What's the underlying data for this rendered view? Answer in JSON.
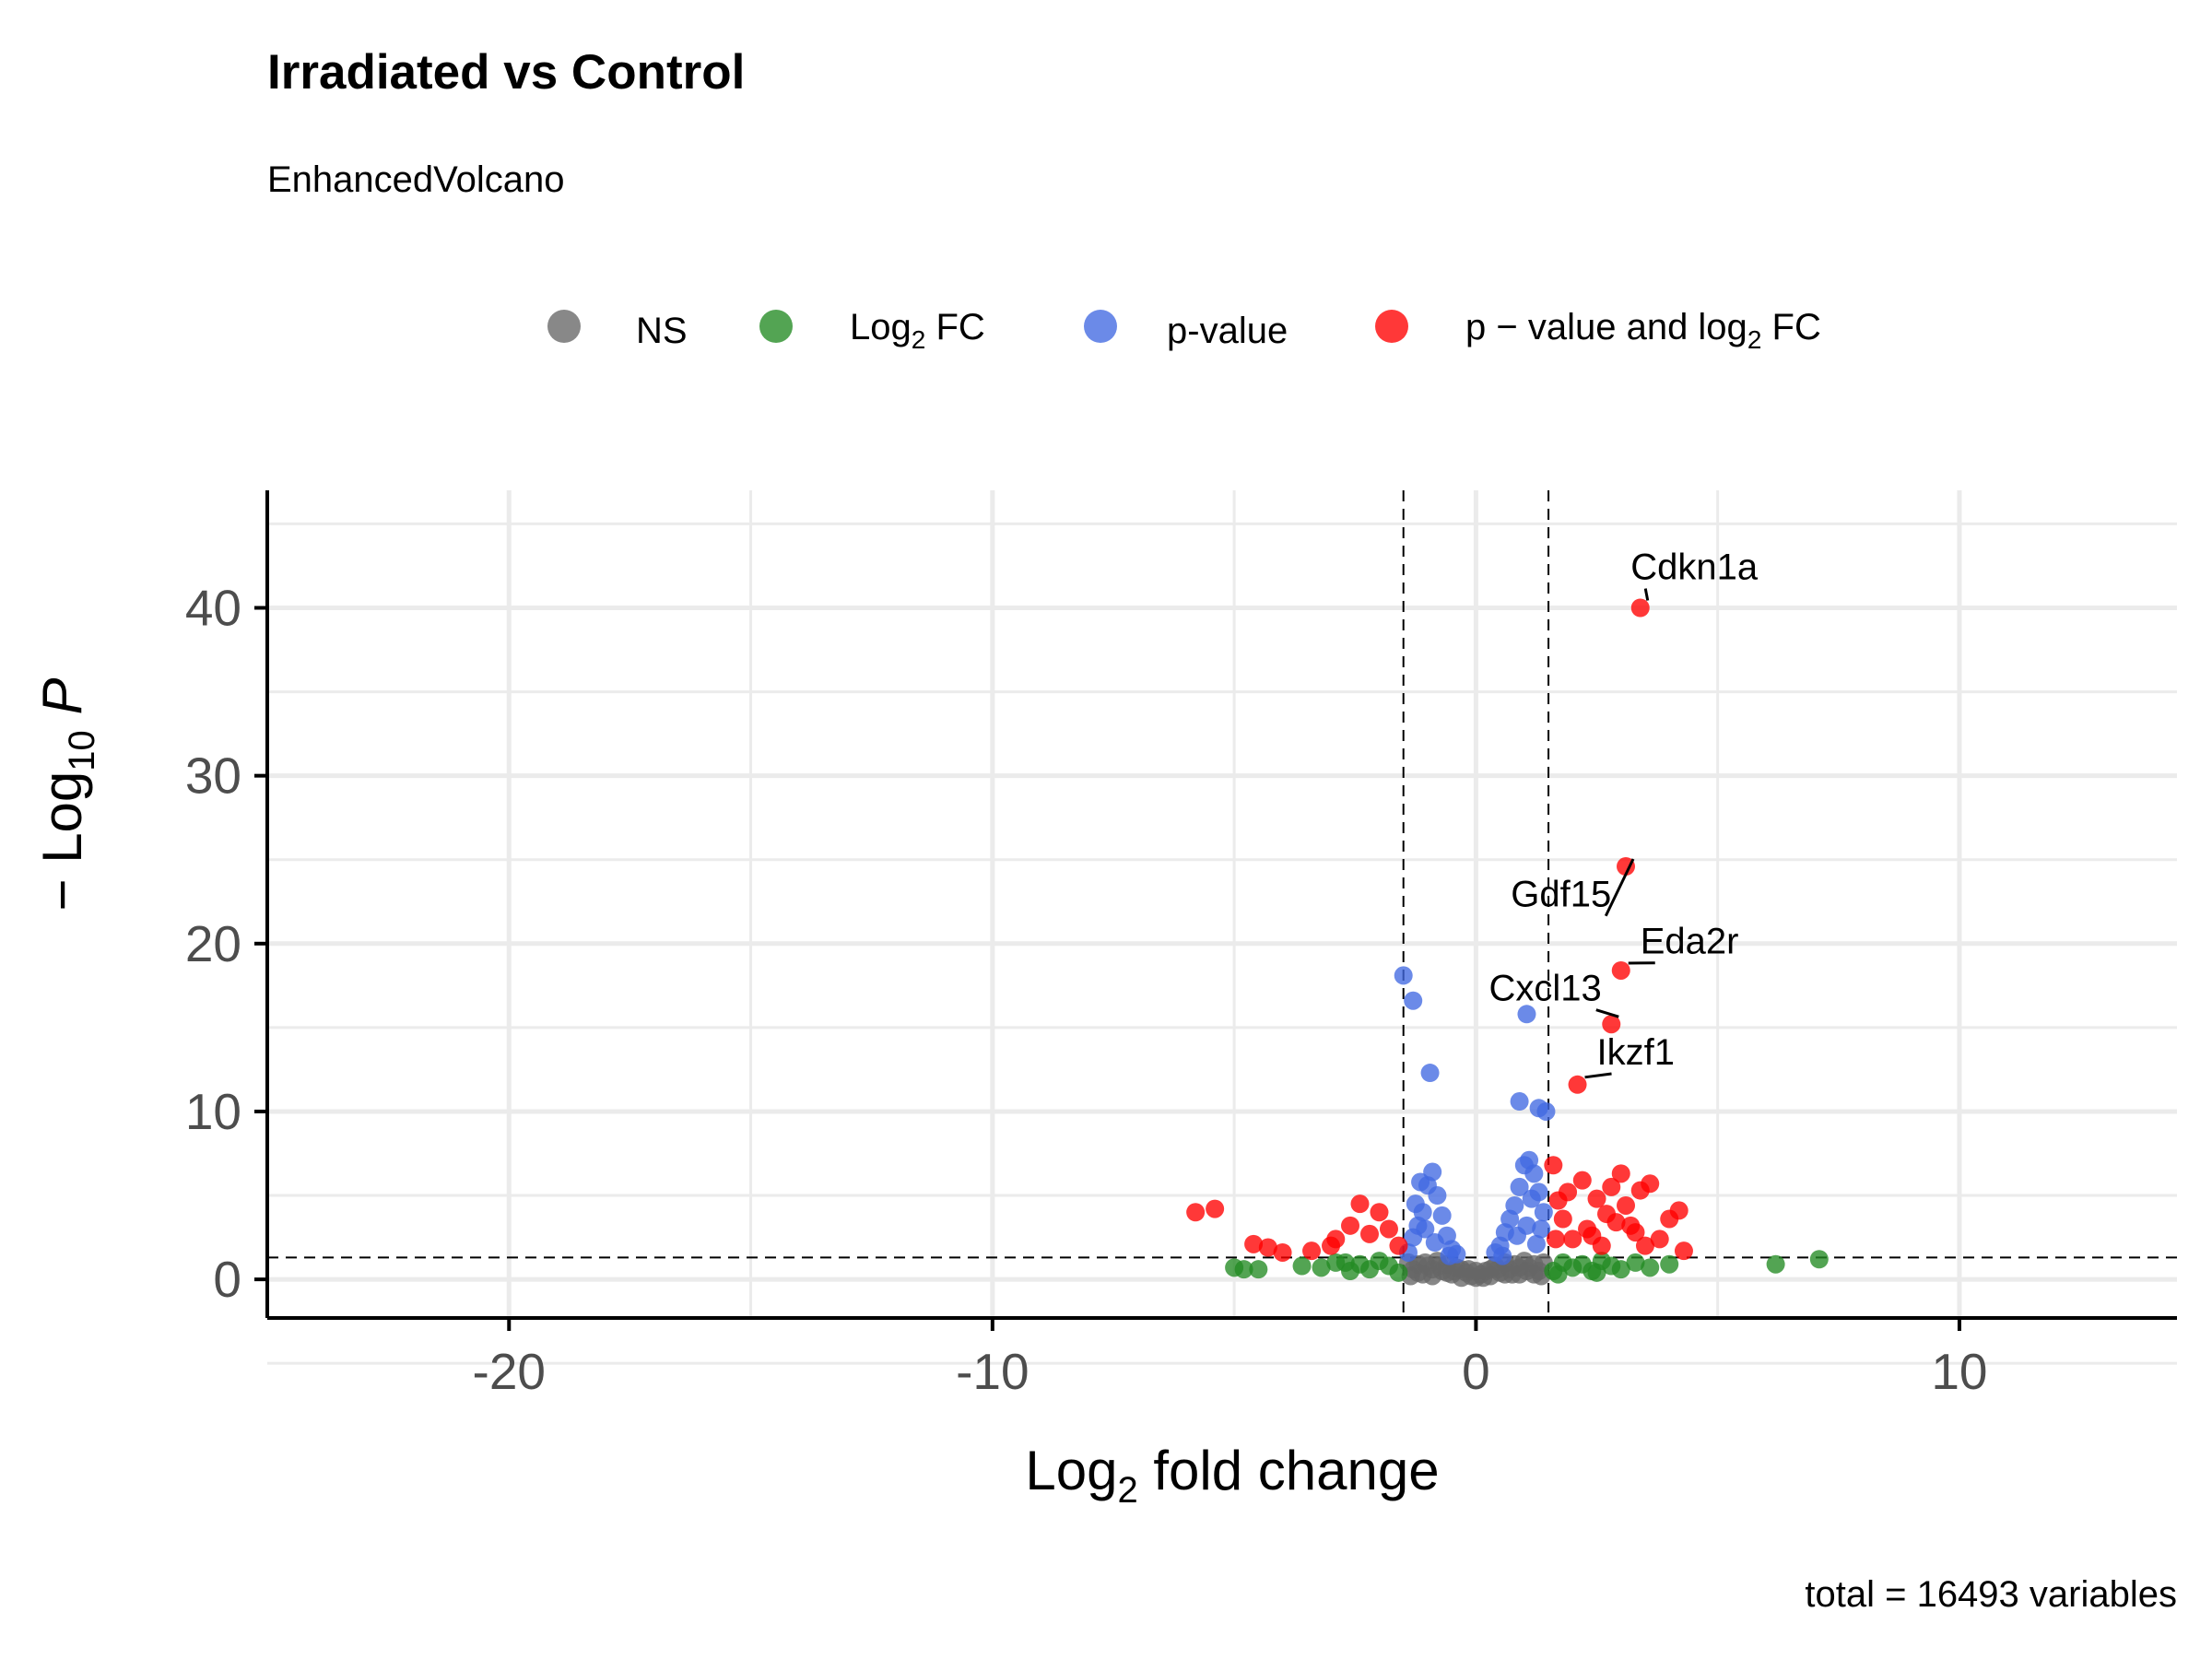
{
  "chart_data": {
    "type": "scatter",
    "title": "Irradiated vs Control",
    "subtitle": "EnhancedVolcano",
    "caption": "total = 16493 variables",
    "xlabel": {
      "base": "Log",
      "sub": "2",
      "rest": " fold change"
    },
    "ylabel": {
      "prefix": "− Log",
      "sub": "10",
      "italic": "P"
    },
    "xlim": [
      -25,
      14.5
    ],
    "ylim": [
      -2.3,
      47
    ],
    "x_ticks": [
      -20,
      -10,
      0,
      10
    ],
    "y_ticks": [
      0,
      10,
      20,
      30,
      40
    ],
    "grid": true,
    "legend_position": "top",
    "cutoffs": {
      "log2fc": [
        -1.5,
        1.5
      ],
      "neg_log10_p": 1.3
    },
    "legend": [
      {
        "key": "NS",
        "parts": [
          {
            "t": "NS"
          }
        ],
        "color": "#666666"
      },
      {
        "key": "FC",
        "parts": [
          {
            "t": "Log"
          },
          {
            "t": "2",
            "sub": true
          },
          {
            "t": " FC"
          }
        ],
        "color": "#228b22"
      },
      {
        "key": "P",
        "parts": [
          {
            "t": "p-value"
          }
        ],
        "color": "#4169e1"
      },
      {
        "key": "FCP",
        "parts": [
          {
            "t": "p − value and log"
          },
          {
            "t": "2",
            "sub": true
          },
          {
            "t": " FC"
          }
        ],
        "color": "#ff0000"
      }
    ],
    "labeled_genes": [
      {
        "name": "Cdkn1a",
        "x": 3.4,
        "y": 40.0,
        "label_x": 3.2,
        "label_y": 41.7,
        "anchor": "start"
      },
      {
        "name": "Gdf15",
        "x": 3.1,
        "y": 24.6,
        "label_x": 2.8,
        "label_y": 22.2,
        "anchor": "end"
      },
      {
        "name": "Eda2r",
        "x": 3.0,
        "y": 18.4,
        "label_x": 3.4,
        "label_y": 19.4,
        "anchor": "start"
      },
      {
        "name": "Cxcl13",
        "x": 2.8,
        "y": 15.2,
        "label_x": 2.6,
        "label_y": 16.6,
        "anchor": "end"
      },
      {
        "name": "Ikzf1",
        "x": 2.1,
        "y": 11.6,
        "label_x": 2.5,
        "label_y": 12.8,
        "anchor": "start"
      }
    ],
    "series": [
      {
        "name": "NS",
        "color": "#666666",
        "points": [
          [
            -1.4,
            1.0
          ],
          [
            -1.3,
            0.6
          ],
          [
            -1.2,
            0.9
          ],
          [
            -1.1,
            0.3
          ],
          [
            -1.0,
            0.8
          ],
          [
            -0.9,
            0.2
          ],
          [
            -0.8,
            1.1
          ],
          [
            -0.7,
            0.5
          ],
          [
            -0.6,
            0.9
          ],
          [
            -0.5,
            0.3
          ],
          [
            -0.4,
            0.7
          ],
          [
            -0.3,
            0.1
          ],
          [
            -0.2,
            0.4
          ],
          [
            -0.1,
            0.2
          ],
          [
            0.0,
            0.1
          ],
          [
            0.1,
            0.3
          ],
          [
            0.2,
            0.5
          ],
          [
            0.3,
            0.2
          ],
          [
            0.4,
            0.8
          ],
          [
            0.5,
            0.4
          ],
          [
            0.6,
            1.0
          ],
          [
            0.7,
            0.6
          ],
          [
            0.8,
            0.9
          ],
          [
            0.9,
            0.3
          ],
          [
            1.0,
            1.1
          ],
          [
            1.1,
            0.7
          ],
          [
            1.2,
            0.9
          ],
          [
            1.3,
            0.5
          ],
          [
            1.4,
            1.0
          ],
          [
            -1.2,
            0.4
          ],
          [
            -0.9,
            0.6
          ],
          [
            -0.6,
            0.4
          ],
          [
            -0.3,
            0.6
          ],
          [
            0.0,
            0.5
          ],
          [
            0.3,
            0.6
          ],
          [
            0.6,
            0.3
          ],
          [
            0.9,
            0.7
          ],
          [
            1.2,
            0.3
          ],
          [
            -0.75,
            0.8
          ],
          [
            0.75,
            0.3
          ],
          [
            -0.45,
            0.5
          ],
          [
            0.45,
            0.6
          ],
          [
            -1.35,
            0.2
          ],
          [
            1.35,
            0.2
          ],
          [
            -0.15,
            0.6
          ],
          [
            0.15,
            0.1
          ],
          [
            -1.05,
            1.0
          ],
          [
            1.05,
            0.5
          ]
        ]
      },
      {
        "name": "Log2 FC",
        "color": "#228b22",
        "points": [
          [
            -5.0,
            0.7
          ],
          [
            -4.8,
            0.6
          ],
          [
            -4.5,
            0.6
          ],
          [
            -3.6,
            0.8
          ],
          [
            -3.2,
            0.7
          ],
          [
            -2.9,
            1.0
          ],
          [
            -2.6,
            0.5
          ],
          [
            -2.4,
            0.9
          ],
          [
            -2.2,
            0.6
          ],
          [
            -2.0,
            1.1
          ],
          [
            -1.8,
            0.8
          ],
          [
            -1.6,
            0.4
          ],
          [
            1.6,
            0.5
          ],
          [
            1.8,
            1.0
          ],
          [
            2.0,
            0.7
          ],
          [
            2.2,
            0.9
          ],
          [
            2.4,
            0.5
          ],
          [
            2.6,
            1.1
          ],
          [
            2.8,
            0.8
          ],
          [
            3.0,
            0.6
          ],
          [
            3.3,
            1.0
          ],
          [
            3.6,
            0.7
          ],
          [
            4.0,
            0.9
          ],
          [
            6.2,
            0.9
          ],
          [
            7.1,
            1.2
          ],
          [
            -2.7,
            1.0
          ],
          [
            1.7,
            0.3
          ],
          [
            2.5,
            0.4
          ]
        ]
      },
      {
        "name": "p-value",
        "color": "#4169e1",
        "points": [
          [
            -1.5,
            18.1
          ],
          [
            -1.3,
            16.6
          ],
          [
            -0.95,
            12.3
          ],
          [
            0.9,
            10.6
          ],
          [
            1.05,
            15.8
          ],
          [
            1.3,
            10.2
          ],
          [
            1.45,
            10.0
          ],
          [
            -1.4,
            1.6
          ],
          [
            -1.3,
            2.5
          ],
          [
            -1.2,
            3.2
          ],
          [
            -1.1,
            4.0
          ],
          [
            -1.0,
            5.6
          ],
          [
            -0.9,
            6.4
          ],
          [
            -0.8,
            5.0
          ],
          [
            -0.7,
            3.8
          ],
          [
            -0.6,
            2.6
          ],
          [
            -0.5,
            1.8
          ],
          [
            -0.4,
            1.5
          ],
          [
            0.4,
            1.6
          ],
          [
            0.5,
            2.0
          ],
          [
            0.6,
            2.8
          ],
          [
            0.7,
            3.6
          ],
          [
            0.8,
            4.4
          ],
          [
            0.9,
            5.5
          ],
          [
            1.0,
            6.8
          ],
          [
            1.1,
            7.1
          ],
          [
            1.2,
            6.3
          ],
          [
            1.3,
            5.2
          ],
          [
            1.4,
            4.0
          ],
          [
            -1.25,
            4.5
          ],
          [
            -1.05,
            3.0
          ],
          [
            -0.85,
            2.2
          ],
          [
            0.85,
            2.6
          ],
          [
            1.05,
            3.2
          ],
          [
            1.25,
            2.1
          ],
          [
            -1.15,
            5.8
          ],
          [
            1.15,
            4.8
          ],
          [
            -0.55,
            1.4
          ],
          [
            0.55,
            1.4
          ],
          [
            1.35,
            3.0
          ]
        ]
      },
      {
        "name": "p - value and log2 FC",
        "color": "#ff0000",
        "points": [
          [
            3.4,
            40.0
          ],
          [
            3.1,
            24.6
          ],
          [
            3.0,
            18.4
          ],
          [
            2.8,
            15.2
          ],
          [
            2.1,
            11.6
          ],
          [
            -5.8,
            4.0
          ],
          [
            -5.4,
            4.2
          ],
          [
            -4.6,
            2.1
          ],
          [
            -4.3,
            1.9
          ],
          [
            -4.0,
            1.6
          ],
          [
            -3.4,
            1.7
          ],
          [
            -3.0,
            2.0
          ],
          [
            -2.6,
            3.2
          ],
          [
            -2.4,
            4.5
          ],
          [
            -2.2,
            2.7
          ],
          [
            -2.0,
            4.0
          ],
          [
            -1.8,
            3.0
          ],
          [
            -1.6,
            2.0
          ],
          [
            1.6,
            6.8
          ],
          [
            1.7,
            4.7
          ],
          [
            1.8,
            3.6
          ],
          [
            1.9,
            5.2
          ],
          [
            2.0,
            2.4
          ],
          [
            2.2,
            5.9
          ],
          [
            2.3,
            3.0
          ],
          [
            2.5,
            4.8
          ],
          [
            2.6,
            2.0
          ],
          [
            2.8,
            5.5
          ],
          [
            3.0,
            6.3
          ],
          [
            3.1,
            4.4
          ],
          [
            3.2,
            3.2
          ],
          [
            3.4,
            5.3
          ],
          [
            3.6,
            5.7
          ],
          [
            3.8,
            2.4
          ],
          [
            4.0,
            3.6
          ],
          [
            4.2,
            4.1
          ],
          [
            4.3,
            1.7
          ],
          [
            2.4,
            2.6
          ],
          [
            2.9,
            3.4
          ],
          [
            3.5,
            2.0
          ],
          [
            -2.9,
            2.4
          ],
          [
            1.65,
            2.4
          ],
          [
            2.7,
            3.9
          ],
          [
            3.3,
            2.8
          ]
        ]
      }
    ]
  }
}
